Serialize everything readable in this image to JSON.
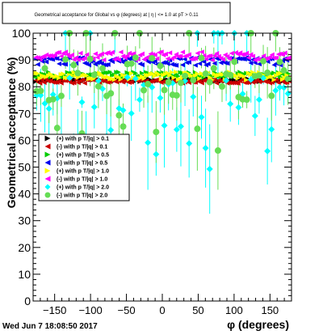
{
  "chart_data": {
    "type": "scatter",
    "title": "Geometrical acceptance for Global vs φ (degrees) at | η | <= 1.0 at pT > 0.11",
    "xlabel": "φ (degrees)",
    "ylabel": "Geometrical acceptance (%)",
    "xlim": [
      -180,
      180
    ],
    "ylim": [
      0,
      100
    ],
    "x_ticks": [
      "−150",
      "−100",
      "−50",
      "0",
      "50",
      "100",
      "150"
    ],
    "y_ticks": [
      "0",
      "10",
      "20",
      "30",
      "40",
      "50",
      "60",
      "70",
      "80",
      "90",
      "100"
    ],
    "grid": false,
    "legend_position": "middle-left",
    "series": [
      {
        "name": "(+) with p T/|q| > 0.1",
        "color": "#000000",
        "marker": "triangle-right",
        "center": 82.5,
        "spread": 0.6
      },
      {
        "name": "(-) with p T/|q| > 0.1",
        "color": "#cc0000",
        "marker": "triangle-left",
        "center": 82.0,
        "spread": 0.7
      },
      {
        "name": "(+) with p T/|q| > 0.5",
        "color": "#00cc00",
        "marker": "triangle-right",
        "center": 84.5,
        "spread": 1.0
      },
      {
        "name": "(-) with p T/|q| > 0.5",
        "color": "#0000ee",
        "marker": "triangle-left",
        "center": 89.5,
        "spread": 1.5
      },
      {
        "name": "(+) with p T/|q| > 1.0",
        "color": "#ffff00",
        "marker": "triangle-right",
        "center": 84.0,
        "spread": 1.5
      },
      {
        "name": "(-) with p T/|q| > 1.0",
        "color": "#ff00ff",
        "marker": "triangle-left",
        "center": 91.5,
        "spread": 1.5
      },
      {
        "name": "(+) with p T/|q| > 2.0",
        "color": "#00ffff",
        "marker": "diamond",
        "center": 76.0,
        "spread": 8.0
      },
      {
        "name": "(-) with p T/|q| > 2.0",
        "color": "#66dd55",
        "marker": "circle",
        "center": 83.0,
        "spread": 8.0
      }
    ]
  },
  "footer": {
    "timestamp": "Wed Jun  7 18:08:50 2017"
  }
}
